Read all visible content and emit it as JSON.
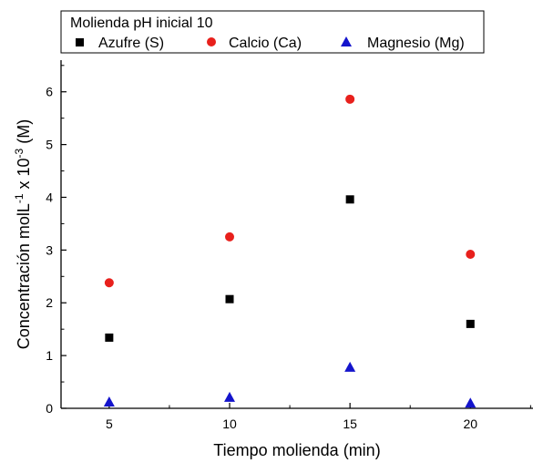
{
  "chart_data": {
    "type": "scatter",
    "title": "",
    "xlabel": "Tiempo molienda (min)",
    "ylabel": {
      "prefix": "Concentración molL",
      "sup1": "-1",
      "mid": " x 10",
      "sup2": "-3",
      "suffix": " (M)"
    },
    "x": [
      5,
      10,
      15,
      20
    ],
    "xticks": [
      "5",
      "10",
      "15",
      "20"
    ],
    "yticks": [
      "0",
      "1",
      "2",
      "3",
      "4",
      "5",
      "6"
    ],
    "xlim": [
      3,
      22.6
    ],
    "ylim": [
      0,
      6.6
    ],
    "grid": false,
    "legend": {
      "title": "Molienda pH inicial 10",
      "placement": "top"
    },
    "series": [
      {
        "name": "Azufre (S)",
        "marker": "square",
        "color": "#000000",
        "values": [
          1.34,
          2.07,
          3.96,
          1.6
        ]
      },
      {
        "name": "Calcio (Ca)",
        "marker": "circle",
        "color": "#e8201c",
        "values": [
          2.38,
          3.25,
          5.86,
          2.92
        ]
      },
      {
        "name": "Magnesio (Mg)",
        "marker": "triangle",
        "color": "#1414cc",
        "values": [
          0.12,
          0.21,
          0.78,
          0.1
        ]
      }
    ]
  }
}
